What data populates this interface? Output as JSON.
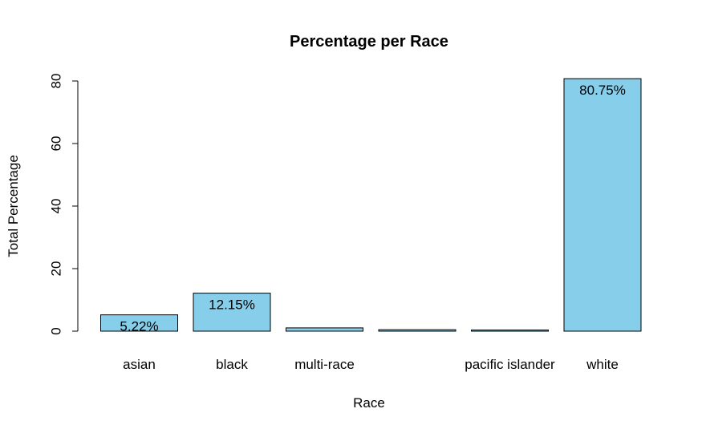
{
  "chart_data": {
    "type": "bar",
    "title": "Percentage per Race",
    "xlabel": "Race",
    "ylabel": "Total Percentage",
    "categories": [
      "asian",
      "black",
      "multi-race",
      "",
      "pacific islander",
      "white"
    ],
    "values": [
      5.22,
      12.15,
      1.05,
      0.47,
      0.36,
      80.75
    ],
    "data_labels": [
      "5.22%",
      "12.15%",
      "",
      "",
      "",
      "80.75%"
    ],
    "ylim": [
      0,
      80
    ],
    "yticks": [
      0,
      20,
      40,
      60,
      80
    ],
    "ytick_labels": [
      "0",
      "20",
      "40",
      "60",
      "80"
    ],
    "bar_color": "#87CEEB",
    "edge_color": "#000000",
    "grid": false,
    "legend": "none"
  }
}
